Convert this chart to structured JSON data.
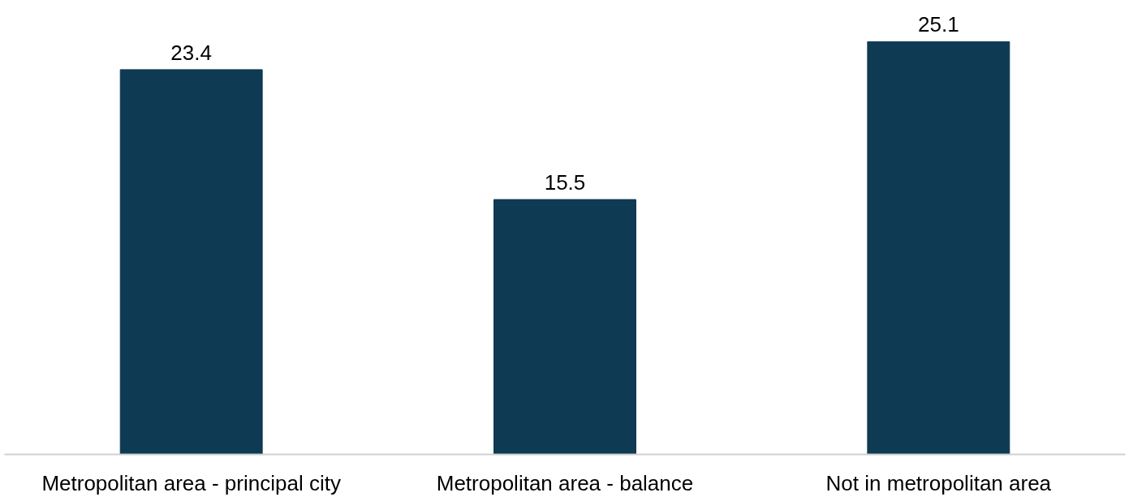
{
  "chart_data": {
    "type": "bar",
    "categories": [
      "Metropolitan area - principal city",
      "Metropolitan area - balance",
      "Not in metropolitan area"
    ],
    "values": [
      23.4,
      15.5,
      25.1
    ],
    "color": "#0f3a53",
    "data_labels": true
  }
}
